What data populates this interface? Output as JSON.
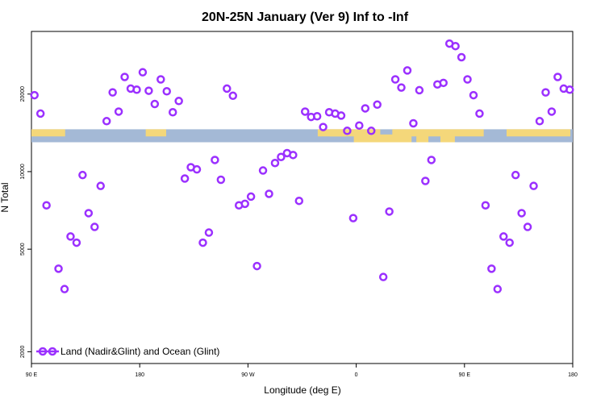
{
  "chart_data": {
    "type": "scatter",
    "title": "20N-25N January (Ver 9)   Inf to -Inf",
    "xlabel": "Longitude (deg E)",
    "ylabel": "N Total",
    "x_ticks": [
      {
        "value": 0,
        "label": "90 E"
      },
      {
        "value": 90,
        "label": "180"
      },
      {
        "value": 180,
        "label": "90 W"
      },
      {
        "value": 270,
        "label": "0"
      },
      {
        "value": 360,
        "label": "90 E"
      },
      {
        "value": 450,
        "label": "180"
      }
    ],
    "y_ticks": [
      {
        "value": 2000,
        "label": "2000"
      },
      {
        "value": 5000,
        "label": "5000"
      },
      {
        "value": 10000,
        "label": "10000"
      },
      {
        "value": 20000,
        "label": "20000"
      }
    ],
    "xlim": [
      0,
      450
    ],
    "ylim": [
      1800,
      35000
    ],
    "y_scale": "log",
    "land_ocean_strip": {
      "y_low": 13000,
      "y_high": 14600
    },
    "colors": {
      "marker": "#9B30FF",
      "ocean": "#A4B9D6",
      "land": "#F4D77A"
    },
    "series": [
      {
        "name": "Land (Nadir&Glint) and Ocean (Glint)",
        "marker": "ring",
        "x": [
          2.5,
          7.5,
          12.5,
          22.5,
          27.5,
          32.5,
          37.5,
          42.5,
          47.5,
          52.5,
          57.5,
          62.5,
          67.5,
          72.5,
          77.5,
          82.5,
          87.5,
          92.5,
          97.5,
          102.5,
          107.5,
          112.5,
          117.5,
          122.5,
          127.5,
          132.5,
          137.5,
          142.5,
          147.5,
          152.5,
          157.5,
          162.5,
          167.5,
          172.5,
          177.5,
          182.5,
          187.5,
          192.5,
          197.5,
          202.5,
          207.5,
          212.5,
          217.5,
          222.5,
          227.5,
          232.5,
          237.5,
          242.5,
          247.5,
          252.5,
          257.5,
          262.5,
          267.5,
          272.5,
          277.5,
          282.5,
          287.5,
          292.5,
          297.5,
          302.5,
          307.5,
          312.5,
          317.5,
          322.5,
          327.5,
          332.5,
          337.5,
          342.5,
          347.5,
          352.5,
          357.5,
          362.5,
          367.5,
          372.5,
          377.5,
          382.5,
          387.5,
          392.5,
          397.5,
          402.5,
          407.5,
          412.5,
          417.5,
          422.5,
          427.5,
          432.5,
          437.5,
          442.5,
          447.5
        ],
        "y": [
          19800,
          16800,
          7400,
          4200,
          3500,
          5600,
          5300,
          9700,
          6900,
          6100,
          8800,
          15700,
          20300,
          17100,
          23300,
          21000,
          20800,
          24300,
          20600,
          18300,
          22800,
          20500,
          17000,
          18800,
          9400,
          10400,
          10200,
          5300,
          5800,
          11100,
          9300,
          21000,
          19700,
          7400,
          7500,
          8000,
          4300,
          10100,
          8200,
          10800,
          11400,
          11800,
          11600,
          7700,
          17100,
          16300,
          16400,
          14900,
          17000,
          16800,
          16500,
          14400,
          6600,
          15100,
          17600,
          14400,
          18200,
          3900,
          7000,
          22800,
          21200,
          24700,
          15400,
          20700,
          9200,
          11100,
          21800,
          22100,
          31400,
          30700,
          27800,
          22800,
          19800,
          16800,
          7400,
          4200,
          3500,
          5600,
          5300,
          9700,
          6900,
          6100,
          8800,
          15700,
          20300,
          17100,
          23300,
          21000,
          20800
        ]
      }
    ],
    "legend": {
      "position": "bottom-left",
      "label": "Land (Nadir&Glint) and Ocean (Glint)"
    },
    "grid": false
  }
}
